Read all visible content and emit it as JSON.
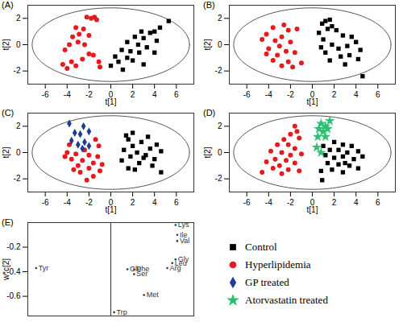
{
  "chart_data": [
    {
      "type": "scatter",
      "title": "(A)",
      "x_label": "t[1]",
      "y_label": "t[2]",
      "xlim": [
        -7.6,
        7.6
      ],
      "ylim": [
        -3,
        3
      ],
      "xticks": [
        -6,
        -4,
        -2,
        0,
        2,
        4,
        6
      ],
      "yticks": [
        -2,
        0,
        2
      ],
      "ellipse": [
        7.2,
        2.8
      ],
      "series": [
        {
          "name": "Control",
          "color": "#000000",
          "marker": "square",
          "x": [
            5.3,
            4.5,
            4.0,
            3.6,
            2.8,
            2.2,
            3.0,
            4.2,
            1.5,
            2.5,
            3.3,
            1.0,
            1.8,
            2.6,
            0.4,
            1.5,
            0.7,
            2.0,
            0.0,
            1.1,
            3.0,
            4.0
          ],
          "values": [
            1.8,
            1.3,
            1.0,
            0.9,
            1.0,
            0.6,
            0.5,
            0.3,
            0.2,
            0.0,
            -0.2,
            -0.4,
            -0.5,
            -0.6,
            -0.9,
            -1.0,
            -1.3,
            -1.2,
            -1.6,
            -1.9,
            -1.5,
            -0.6
          ]
        },
        {
          "name": "Hyperlipidemia",
          "color": "#e41a1c",
          "marker": "circle",
          "x": [
            -2.2,
            -1.8,
            -1.5,
            -1.3,
            -3.2,
            -2.5,
            -2.9,
            -3.5,
            -2.0,
            -3.0,
            -2.4,
            -3.8,
            -4.2,
            -4.4,
            -3.6,
            -3.2,
            -2.6,
            -2.0,
            -1.6,
            -1.1,
            -1.0,
            -4.0
          ],
          "values": [
            2.1,
            2.0,
            2.1,
            1.9,
            1.3,
            1.2,
            0.8,
            0.6,
            0.7,
            0.2,
            0.0,
            0.0,
            -0.4,
            -1.5,
            -1.3,
            -1.6,
            -1.1,
            -0.7,
            -0.8,
            -1.3,
            -1.7,
            -1.8
          ]
        }
      ]
    },
    {
      "type": "scatter",
      "title": "(B)",
      "x_label": "t[1]",
      "y_label": "t[2]",
      "xlim": [
        -7.6,
        7.6
      ],
      "ylim": [
        -3,
        3
      ],
      "xticks": [
        -6,
        -4,
        -2,
        0,
        2,
        4,
        6
      ],
      "yticks": [
        -2,
        0,
        2
      ],
      "ellipse": [
        7.2,
        2.8
      ],
      "series": [
        {
          "name": "Control",
          "color": "#000000",
          "marker": "square",
          "x": [
            1.2,
            1.6,
            0.9,
            1.8,
            1.4,
            2.2,
            0.6,
            3.6,
            2.8,
            1.0,
            4.0,
            1.8,
            3.2,
            2.4,
            4.4,
            1.2,
            3.4,
            2.6,
            4.2,
            1.6,
            3.0,
            4.6,
            0.8
          ],
          "values": [
            1.8,
            1.9,
            1.6,
            1.4,
            1.2,
            1.1,
            0.9,
            0.6,
            0.7,
            0.4,
            0.2,
            0.0,
            -0.1,
            -0.3,
            -0.4,
            -0.6,
            -0.8,
            -0.9,
            -1.1,
            -1.2,
            -1.5,
            -2.4,
            -0.2
          ]
        },
        {
          "name": "Hyperlipidemia",
          "color": "#e41a1c",
          "marker": "circle",
          "x": [
            -2.6,
            -3.6,
            -2.2,
            -4.2,
            -1.4,
            -2.8,
            -3.4,
            -4.6,
            -2.0,
            -3.0,
            -4.0,
            -2.4,
            -4.2,
            -3.2,
            -1.6,
            -2.2,
            -1.8,
            -1.0,
            -2.8,
            -3.6
          ],
          "values": [
            1.5,
            1.3,
            1.1,
            0.8,
            1.2,
            0.6,
            0.3,
            0.4,
            0.2,
            -0.1,
            -0.3,
            -0.5,
            -0.7,
            -0.8,
            -0.6,
            -1.3,
            -1.7,
            -1.4,
            -1.6,
            -1.2
          ]
        }
      ]
    },
    {
      "type": "scatter",
      "title": "(C)",
      "x_label": "t[1]",
      "y_label": "t[2]",
      "xlim": [
        -7.6,
        7.6
      ],
      "ylim": [
        -3,
        3
      ],
      "xticks": [
        -6,
        -4,
        -2,
        0,
        2,
        4,
        6
      ],
      "yticks": [
        -2,
        0,
        2
      ],
      "ellipse": [
        7.2,
        2.8
      ],
      "series": [
        {
          "name": "Control",
          "color": "#000000",
          "marker": "square",
          "x": [
            1.4,
            2.0,
            1.6,
            3.4,
            2.8,
            2.0,
            4.2,
            3.6,
            1.2,
            2.4,
            4.6,
            1.8,
            3.0,
            4.0,
            1.0,
            2.6,
            3.8,
            1.6,
            4.6,
            2.2,
            3.2
          ],
          "values": [
            1.3,
            1.5,
            1.0,
            1.2,
            0.8,
            0.5,
            0.6,
            0.3,
            0.2,
            0.0,
            0.1,
            -0.3,
            -0.4,
            -0.5,
            -0.6,
            -0.8,
            -1.0,
            -1.2,
            -1.5,
            -1.3,
            -0.2
          ]
        },
        {
          "name": "Hyperlipidemia",
          "color": "#e41a1c",
          "marker": "circle",
          "x": [
            -1.4,
            -3.8,
            -1.1,
            -4.0,
            -3.2,
            -2.0,
            -1.2,
            -3.6,
            -2.6,
            -1.6,
            -3.0,
            -2.0,
            -1.0,
            -2.8,
            -1.6,
            -2.2,
            -3.4,
            -0.8,
            -4.2,
            -2.4
          ],
          "values": [
            1.0,
            0.6,
            0.5,
            0.0,
            -0.1,
            -0.2,
            -0.3,
            -0.5,
            -0.6,
            -0.8,
            -1.0,
            -1.2,
            -1.4,
            -1.5,
            -1.8,
            -2.1,
            -1.3,
            -0.9,
            -0.3,
            0.2
          ]
        },
        {
          "name": "GP treated",
          "color": "#1c3d94",
          "marker": "diamond",
          "x": [
            -3.8,
            -2.5,
            -3.3,
            -2.8,
            -2.0,
            -3.6,
            -2.4,
            -3.0,
            -2.0,
            -2.6
          ],
          "values": [
            2.2,
            2.0,
            1.5,
            1.4,
            1.6,
            0.9,
            0.8,
            0.6,
            0.5,
            0.3
          ]
        }
      ]
    },
    {
      "type": "scatter",
      "title": "(D)",
      "x_label": "t[1]",
      "y_label": "t[2]",
      "xlim": [
        -7.6,
        7.6
      ],
      "ylim": [
        -3,
        3
      ],
      "xticks": [
        -6,
        -4,
        -2,
        0,
        2,
        4,
        6
      ],
      "yticks": [
        -2,
        0,
        2
      ],
      "ellipse": [
        7.2,
        2.8
      ],
      "series": [
        {
          "name": "Control",
          "color": "#000000",
          "marker": "square",
          "x": [
            1.0,
            2.0,
            2.8,
            3.6,
            1.6,
            2.4,
            3.2,
            4.2,
            1.2,
            2.0,
            2.8,
            3.8,
            4.6,
            1.4,
            2.4,
            3.4,
            4.2,
            0.8,
            1.8,
            2.8,
            0.9,
            3.0
          ],
          "values": [
            0.5,
            0.8,
            0.6,
            0.5,
            0.2,
            0.2,
            0.0,
            0.1,
            -0.2,
            -0.4,
            -0.3,
            -0.5,
            -0.3,
            -0.8,
            -0.9,
            -1.0,
            -1.2,
            -1.4,
            -1.3,
            -1.5,
            -2.1,
            -0.8
          ]
        },
        {
          "name": "Hyperlipidemia",
          "color": "#e41a1c",
          "marker": "circle",
          "x": [
            -1.6,
            -1.4,
            -2.0,
            -2.6,
            -1.2,
            -3.2,
            -2.2,
            -1.6,
            -3.8,
            -2.8,
            -2.0,
            -1.0,
            -3.4,
            -2.4,
            -1.6,
            -3.0,
            -4.2,
            -2.2,
            -1.2,
            -4.6,
            -2.8,
            -3.6
          ],
          "values": [
            2.0,
            1.6,
            1.4,
            1.0,
            1.1,
            0.6,
            0.6,
            0.3,
            0.1,
            0.0,
            -0.2,
            -0.1,
            -0.5,
            -0.6,
            -0.8,
            -1.0,
            -0.7,
            -1.3,
            -1.4,
            -1.5,
            -1.6,
            -1.2
          ]
        },
        {
          "name": "Atorvastatin treated",
          "color": "#2fbf71",
          "marker": "star",
          "x": [
            0.8,
            1.2,
            1.6,
            0.6,
            1.0,
            1.4,
            0.5,
            1.2,
            0.4,
            0.8
          ],
          "values": [
            2.2,
            2.0,
            2.4,
            1.8,
            1.6,
            1.8,
            1.2,
            1.2,
            0.4,
            0.0
          ]
        }
      ]
    },
    {
      "type": "scatter",
      "title": "(E)",
      "y_label": "w*c[2]",
      "xlim": [
        -0.5,
        0.5
      ],
      "ylim": [
        -0.76,
        0
      ],
      "xticks": [
        0
      ],
      "yticks": [
        -0.2,
        -0.4,
        -0.6
      ],
      "tick_labels": "y",
      "color": "#333333",
      "marker": "point",
      "labels": [
        "Lys",
        "Ile",
        "Val",
        "Leu",
        "Gly",
        "Arg",
        "Glu",
        "Phe",
        "Ser",
        "Met",
        "Trp",
        "Tyr"
      ],
      "x": [
        0.39,
        0.4,
        0.4,
        0.37,
        0.39,
        0.34,
        0.1,
        0.14,
        0.14,
        0.2,
        0.02,
        -0.45
      ],
      "values": [
        -0.02,
        -0.1,
        -0.15,
        -0.33,
        -0.3,
        -0.37,
        -0.38,
        -0.38,
        -0.42,
        -0.59,
        -0.73,
        -0.37
      ]
    }
  ]
}
